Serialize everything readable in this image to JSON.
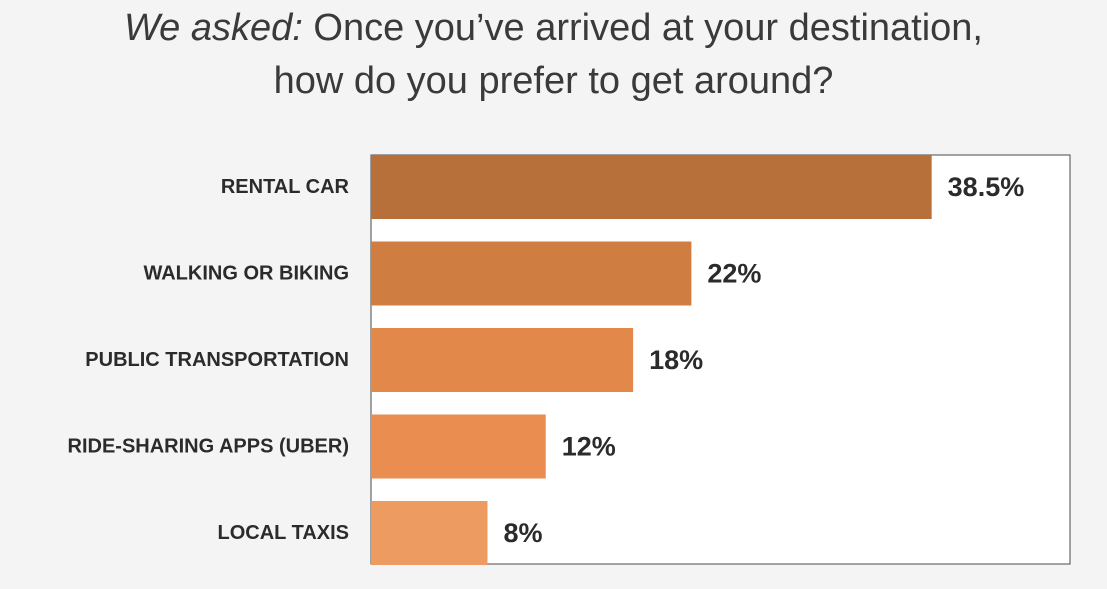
{
  "title": {
    "lead": "We asked:",
    "line1": "Once you’ve arrived at your destination,",
    "line2": "how do you prefer to get around?"
  },
  "chart_data": {
    "type": "bar",
    "orientation": "horizontal",
    "categories": [
      "RENTAL CAR",
      "WALKING OR BIKING",
      "PUBLIC TRANSPORTATION",
      "RIDE-SHARING APPS (UBER)",
      "LOCAL TAXIS"
    ],
    "values": [
      38.5,
      22,
      18,
      12,
      8
    ],
    "value_labels": [
      "38.5%",
      "22%",
      "18%",
      "12%",
      "8%"
    ],
    "unit": "%",
    "xlim": [
      0,
      48
    ],
    "grid": false,
    "legend": "none",
    "colors": [
      "#b8703b",
      "#d07d42",
      "#e2884a",
      "#e98e50",
      "#ed9b61"
    ]
  },
  "colors": {
    "background": "#f4f4f4",
    "plot_background": "#ffffff",
    "plot_border": "#4a4a4a",
    "text": "#2b2b2b"
  }
}
